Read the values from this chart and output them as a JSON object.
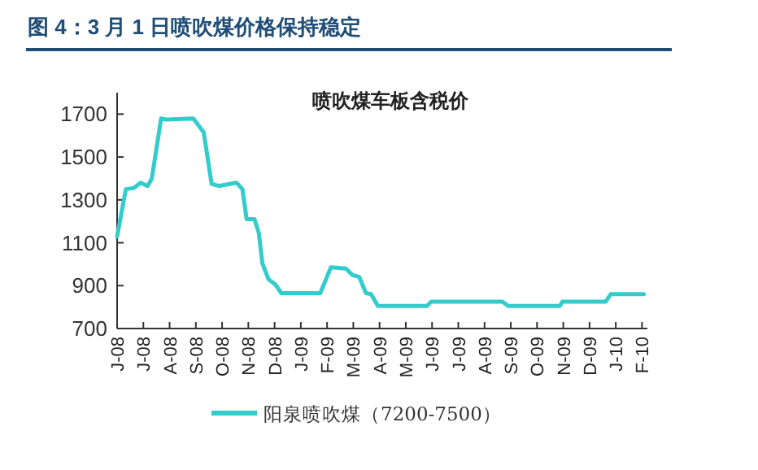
{
  "chart_data": {
    "type": "line",
    "title": "图 4：3 月 1 日喷吹煤价格保持稳定",
    "subtitle": "喷吹煤车板含税价",
    "x": [
      "2008-06-01",
      "2008-06-11",
      "2008-06-20",
      "2008-06-28",
      "2008-07-06",
      "2008-07-11",
      "2008-07-22",
      "2008-07-28",
      "2008-08-29",
      "2008-09-10",
      "2008-09-19",
      "2008-09-27",
      "2008-10-18",
      "2008-10-25",
      "2008-10-30",
      "2008-11-08",
      "2008-11-13",
      "2008-11-17",
      "2008-11-24",
      "2008-12-02",
      "2008-12-09",
      "2009-01-24",
      "2009-02-05",
      "2009-02-21",
      "2009-02-28",
      "2009-03-08",
      "2009-03-16",
      "2009-03-22",
      "2009-03-30",
      "2009-05-26",
      "2009-05-31",
      "2009-08-22",
      "2009-08-29",
      "2009-10-28",
      "2009-10-31",
      "2009-12-20",
      "2009-12-26",
      "2010-02-03"
    ],
    "series": [
      {
        "name": "阳泉喷吹煤（7200-7500）",
        "color": "#33cccc",
        "values": [
          1130,
          1350,
          1355,
          1380,
          1365,
          1400,
          1680,
          1675,
          1680,
          1615,
          1375,
          1365,
          1380,
          1350,
          1210,
          1210,
          1145,
          1005,
          930,
          905,
          865,
          865,
          985,
          980,
          950,
          940,
          865,
          860,
          805,
          805,
          825,
          825,
          805,
          805,
          825,
          825,
          860,
          860
        ]
      }
    ],
    "xlim": [
      "2008-06-01",
      "2010-02-05"
    ],
    "ylim": [
      700,
      1800
    ],
    "yticks": [
      700,
      900,
      1100,
      1300,
      1500,
      1700
    ],
    "xticks": [
      {
        "value": "2008-06",
        "label": "J-08"
      },
      {
        "value": "2008-07",
        "label": "J-08"
      },
      {
        "value": "2008-08",
        "label": "A-08"
      },
      {
        "value": "2008-09",
        "label": "S-08"
      },
      {
        "value": "2008-10",
        "label": "O-08"
      },
      {
        "value": "2008-11",
        "label": "N-08"
      },
      {
        "value": "2008-12",
        "label": "D-08"
      },
      {
        "value": "2009-01",
        "label": "J-09"
      },
      {
        "value": "2009-02",
        "label": "F-09"
      },
      {
        "value": "2009-03",
        "label": "M-09"
      },
      {
        "value": "2009-04",
        "label": "A-09"
      },
      {
        "value": "2009-05",
        "label": "M-09"
      },
      {
        "value": "2009-06",
        "label": "J-09"
      },
      {
        "value": "2009-07",
        "label": "J-09"
      },
      {
        "value": "2009-08",
        "label": "A-09"
      },
      {
        "value": "2009-09",
        "label": "S-09"
      },
      {
        "value": "2009-10",
        "label": "O-09"
      },
      {
        "value": "2009-11",
        "label": "N-09"
      },
      {
        "value": "2009-12",
        "label": "D-09"
      },
      {
        "value": "2010-01",
        "label": "J-10"
      },
      {
        "value": "2010-02",
        "label": "F-10"
      }
    ],
    "legend": "bottom"
  }
}
